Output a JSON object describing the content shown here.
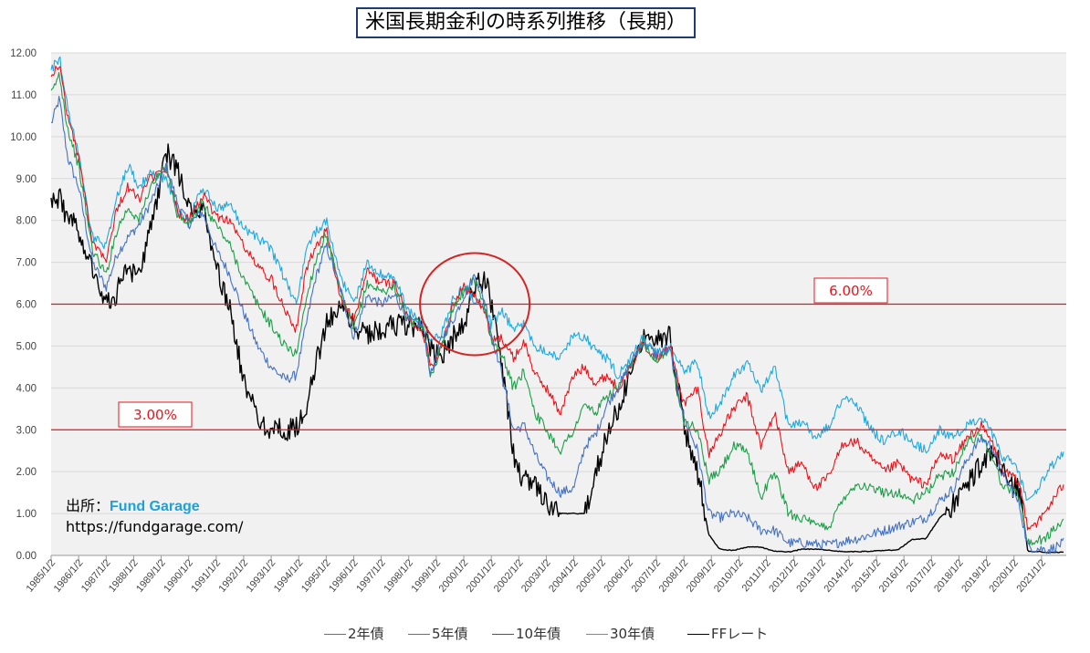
{
  "title": "米国長期金利の時系列推移（長期）",
  "credit": {
    "prefix": "出所：",
    "brand": "Fund Garage",
    "url": "https://fundgarage.com/"
  },
  "chart_data": {
    "type": "line",
    "ylim": [
      0,
      12
    ],
    "y_ticks": [
      "0.00",
      "1.00",
      "2.00",
      "3.00",
      "4.00",
      "5.00",
      "6.00",
      "7.00",
      "8.00",
      "9.00",
      "10.00",
      "11.00",
      "12.00"
    ],
    "x_ticks": [
      "1985/1/2",
      "1986/1/2",
      "1987/1/2",
      "1988/1/2",
      "1989/1/2",
      "1990/1/2",
      "1991/1/2",
      "1992/1/2",
      "1993/1/2",
      "1994/1/2",
      "1995/1/2",
      "1996/1/2",
      "1997/1/2",
      "1998/1/2",
      "1999/1/2",
      "2000/1/2",
      "2001/1/2",
      "2002/1/2",
      "2003/1/2",
      "2004/1/2",
      "2005/1/2",
      "2006/1/2",
      "2007/1/2",
      "2008/1/2",
      "2009/1/2",
      "2010/1/2",
      "2011/1/2",
      "2012/1/2",
      "2013/1/2",
      "2014/1/2",
      "2015/1/2",
      "2016/1/2",
      "2017/1/2",
      "2018/1/2",
      "2019/1/2",
      "2020/1/2",
      "2021/1/2"
    ],
    "x_start": 1985.0,
    "x_end": 2021.9,
    "grid": true,
    "legend_position": "bottom",
    "reference_lines": [
      {
        "y": 6.0,
        "label": "6.00%"
      },
      {
        "y": 3.0,
        "label": "3.00%"
      }
    ],
    "annotations": [
      {
        "shape": "circle",
        "center_x": 2000.4,
        "center_y": 6.0
      }
    ],
    "series": [
      {
        "name": "2年債",
        "color": "#4472c4",
        "x": [
          1985.0,
          1985.3,
          1985.6,
          1986.0,
          1986.5,
          1987.0,
          1987.4,
          1987.8,
          1988.2,
          1988.6,
          1989.2,
          1989.6,
          1990.0,
          1990.5,
          1991.0,
          1991.5,
          1992.0,
          1992.5,
          1993.0,
          1993.5,
          1993.9,
          1994.3,
          1994.6,
          1995.0,
          1995.5,
          1996.0,
          1996.5,
          1997.0,
          1997.5,
          1998.0,
          1998.5,
          1998.8,
          1999.2,
          1999.6,
          2000.0,
          2000.4,
          2000.8,
          2001.0,
          2001.4,
          2001.8,
          2002.2,
          2002.6,
          2003.0,
          2003.5,
          2004.0,
          2004.4,
          2004.8,
          2005.2,
          2005.6,
          2006.0,
          2006.5,
          2007.0,
          2007.5,
          2008.0,
          2008.5,
          2008.9,
          2009.3,
          2009.8,
          2010.3,
          2010.8,
          2011.3,
          2011.8,
          2012.3,
          2012.8,
          2013.3,
          2013.8,
          2014.3,
          2014.8,
          2015.3,
          2015.8,
          2016.3,
          2016.8,
          2017.3,
          2017.8,
          2018.3,
          2018.8,
          2019.2,
          2019.6,
          2019.9,
          2020.2,
          2020.5,
          2020.9,
          2021.3,
          2021.8
        ],
        "y": [
          10.3,
          10.9,
          9.5,
          8.8,
          7.0,
          6.4,
          7.2,
          7.6,
          7.9,
          8.4,
          9.3,
          8.4,
          7.9,
          8.2,
          7.3,
          6.7,
          5.8,
          5.0,
          4.5,
          4.2,
          4.3,
          5.6,
          6.6,
          7.4,
          6.4,
          5.2,
          6.2,
          6.0,
          6.2,
          5.6,
          5.5,
          4.3,
          5.2,
          5.6,
          6.2,
          6.7,
          6.0,
          5.3,
          4.3,
          3.0,
          3.1,
          2.4,
          1.9,
          1.5,
          1.6,
          2.6,
          2.9,
          3.6,
          4.0,
          4.5,
          5.1,
          4.8,
          4.9,
          3.3,
          2.5,
          1.0,
          0.9,
          1.0,
          0.9,
          0.6,
          0.6,
          0.3,
          0.3,
          0.27,
          0.25,
          0.34,
          0.4,
          0.5,
          0.6,
          0.7,
          0.8,
          0.9,
          1.3,
          1.6,
          2.3,
          2.8,
          2.6,
          1.9,
          1.6,
          1.2,
          0.2,
          0.16,
          0.14,
          0.3
        ]
      },
      {
        "name": "5年債",
        "color": "#1e9e4a",
        "x": [
          1985.0,
          1985.3,
          1985.6,
          1986.0,
          1986.5,
          1987.0,
          1987.4,
          1987.8,
          1988.2,
          1988.6,
          1989.2,
          1989.6,
          1990.0,
          1990.5,
          1991.0,
          1991.5,
          1992.0,
          1992.5,
          1993.0,
          1993.5,
          1993.9,
          1994.3,
          1994.6,
          1995.0,
          1995.5,
          1996.0,
          1996.5,
          1997.0,
          1997.5,
          1998.0,
          1998.5,
          1998.8,
          1999.2,
          1999.6,
          2000.0,
          2000.4,
          2000.8,
          2001.0,
          2001.4,
          2001.8,
          2002.2,
          2002.6,
          2003.0,
          2003.5,
          2004.0,
          2004.4,
          2004.8,
          2005.2,
          2005.6,
          2006.0,
          2006.5,
          2007.0,
          2007.5,
          2008.0,
          2008.5,
          2008.9,
          2009.3,
          2009.8,
          2010.3,
          2010.8,
          2011.3,
          2011.8,
          2012.3,
          2012.8,
          2013.3,
          2013.8,
          2014.3,
          2014.8,
          2015.3,
          2015.8,
          2016.3,
          2016.8,
          2017.3,
          2017.8,
          2018.3,
          2018.8,
          2019.2,
          2019.6,
          2019.9,
          2020.2,
          2020.5,
          2020.9,
          2021.3,
          2021.8
        ],
        "y": [
          11.0,
          11.5,
          10.2,
          9.3,
          7.3,
          6.7,
          7.8,
          8.3,
          8.0,
          8.8,
          9.3,
          8.1,
          7.9,
          8.4,
          7.9,
          7.4,
          6.6,
          6.0,
          5.5,
          5.0,
          4.8,
          6.2,
          7.0,
          7.7,
          6.3,
          5.4,
          6.5,
          6.3,
          6.4,
          5.6,
          5.5,
          4.3,
          5.0,
          5.9,
          6.3,
          6.6,
          5.9,
          5.1,
          4.8,
          4.0,
          4.4,
          3.4,
          3.0,
          2.5,
          3.0,
          3.6,
          3.4,
          3.8,
          4.0,
          4.4,
          5.1,
          4.7,
          4.9,
          3.2,
          3.0,
          1.8,
          2.0,
          2.6,
          2.5,
          1.4,
          2.0,
          1.0,
          0.9,
          0.7,
          0.7,
          1.4,
          1.7,
          1.6,
          1.5,
          1.5,
          1.3,
          1.5,
          1.9,
          2.0,
          2.7,
          2.9,
          2.4,
          1.6,
          1.6,
          1.4,
          0.3,
          0.35,
          0.5,
          0.85
        ]
      },
      {
        "name": "10年債",
        "color": "#e8141c",
        "x": [
          1985.0,
          1985.3,
          1985.6,
          1986.0,
          1986.5,
          1987.0,
          1987.4,
          1987.8,
          1988.2,
          1988.6,
          1989.2,
          1989.6,
          1990.0,
          1990.5,
          1991.0,
          1991.5,
          1992.0,
          1992.5,
          1993.0,
          1993.5,
          1993.9,
          1994.3,
          1994.6,
          1995.0,
          1995.5,
          1996.0,
          1996.5,
          1997.0,
          1997.5,
          1998.0,
          1998.5,
          1998.8,
          1999.2,
          1999.6,
          2000.0,
          2000.4,
          2000.8,
          2001.0,
          2001.4,
          2001.8,
          2002.2,
          2002.6,
          2003.0,
          2003.5,
          2004.0,
          2004.4,
          2004.8,
          2005.2,
          2005.6,
          2006.0,
          2006.5,
          2007.0,
          2007.5,
          2008.0,
          2008.5,
          2008.9,
          2009.3,
          2009.8,
          2010.3,
          2010.8,
          2011.3,
          2011.8,
          2012.3,
          2012.8,
          2013.3,
          2013.8,
          2014.3,
          2014.8,
          2015.3,
          2015.8,
          2016.3,
          2016.8,
          2017.3,
          2017.8,
          2018.3,
          2018.8,
          2019.2,
          2019.6,
          2019.9,
          2020.2,
          2020.5,
          2020.9,
          2021.3,
          2021.8
        ],
        "y": [
          11.5,
          11.7,
          10.5,
          9.5,
          7.5,
          7.1,
          8.3,
          8.8,
          8.5,
          9.0,
          9.2,
          8.2,
          8.0,
          8.6,
          8.1,
          8.0,
          7.4,
          6.9,
          6.6,
          5.9,
          5.4,
          6.9,
          7.3,
          7.8,
          6.2,
          5.6,
          6.8,
          6.5,
          6.5,
          5.6,
          5.4,
          4.5,
          5.0,
          6.0,
          6.4,
          6.2,
          5.8,
          5.1,
          5.2,
          4.7,
          5.1,
          4.3,
          4.0,
          3.4,
          4.3,
          4.5,
          4.1,
          4.3,
          4.0,
          4.4,
          5.1,
          4.7,
          5.0,
          3.6,
          4.0,
          2.4,
          2.9,
          3.5,
          3.8,
          2.6,
          3.4,
          2.0,
          2.2,
          1.6,
          1.9,
          2.7,
          2.7,
          2.3,
          2.0,
          2.2,
          1.8,
          1.7,
          2.4,
          2.3,
          2.8,
          3.1,
          2.7,
          2.0,
          1.9,
          1.7,
          0.7,
          0.8,
          1.2,
          1.7
        ]
      },
      {
        "name": "30年債",
        "color": "#1fa9df",
        "x": [
          1985.0,
          1985.3,
          1985.6,
          1986.0,
          1986.5,
          1987.0,
          1987.4,
          1987.8,
          1988.2,
          1988.6,
          1989.2,
          1989.6,
          1990.0,
          1990.5,
          1991.0,
          1991.5,
          1992.0,
          1992.5,
          1993.0,
          1993.5,
          1993.9,
          1994.3,
          1994.6,
          1995.0,
          1995.5,
          1996.0,
          1996.5,
          1997.0,
          1997.5,
          1998.0,
          1998.5,
          1998.8,
          1999.2,
          1999.6,
          2000.0,
          2000.4,
          2000.8,
          2001.0,
          2001.4,
          2001.8,
          2002.2,
          2002.6,
          2003.0,
          2003.5,
          2004.0,
          2004.4,
          2004.8,
          2005.2,
          2005.6,
          2006.0,
          2006.5,
          2007.0,
          2007.5,
          2008.0,
          2008.5,
          2008.9,
          2009.3,
          2009.8,
          2010.3,
          2010.8,
          2011.3,
          2011.8,
          2012.3,
          2012.8,
          2013.3,
          2013.8,
          2014.3,
          2014.8,
          2015.3,
          2015.8,
          2016.3,
          2016.8,
          2017.3,
          2017.8,
          2018.3,
          2018.8,
          2019.2,
          2019.6,
          2019.9,
          2020.2,
          2020.5,
          2020.9,
          2021.3,
          2021.8
        ],
        "y": [
          11.6,
          11.9,
          10.7,
          9.6,
          7.6,
          7.4,
          8.6,
          9.3,
          8.8,
          9.1,
          9.0,
          8.2,
          8.0,
          8.8,
          8.3,
          8.4,
          7.8,
          7.6,
          7.3,
          6.6,
          6.0,
          7.3,
          7.7,
          8.0,
          6.7,
          6.0,
          7.0,
          6.7,
          6.6,
          5.8,
          5.6,
          5.1,
          5.3,
          6.1,
          6.4,
          6.1,
          5.9,
          5.5,
          5.8,
          5.4,
          5.5,
          5.0,
          4.9,
          4.7,
          5.3,
          5.2,
          4.9,
          4.7,
          4.3,
          4.6,
          5.2,
          4.8,
          5.0,
          4.4,
          4.6,
          3.3,
          3.6,
          4.3,
          4.6,
          3.9,
          4.5,
          3.1,
          3.2,
          2.8,
          3.1,
          3.8,
          3.6,
          3.0,
          2.7,
          3.0,
          2.7,
          2.5,
          3.0,
          2.8,
          3.1,
          3.3,
          2.9,
          2.3,
          2.3,
          1.9,
          1.3,
          1.6,
          2.1,
          2.4
        ]
      },
      {
        "name": "FFレート",
        "color": "#000000",
        "x": [
          1985.0,
          1985.3,
          1985.6,
          1986.0,
          1986.5,
          1987.0,
          1987.4,
          1987.8,
          1988.2,
          1988.6,
          1989.2,
          1989.6,
          1990.0,
          1990.5,
          1991.0,
          1991.5,
          1992.0,
          1992.5,
          1993.0,
          1993.5,
          1993.9,
          1994.3,
          1994.6,
          1995.0,
          1995.5,
          1996.0,
          1996.5,
          1997.0,
          1997.5,
          1998.0,
          1998.5,
          1998.8,
          1999.2,
          1999.6,
          2000.0,
          2000.4,
          2000.8,
          2001.0,
          2001.4,
          2001.8,
          2002.2,
          2002.6,
          2003.0,
          2003.5,
          2004.0,
          2004.4,
          2004.8,
          2005.2,
          2005.6,
          2006.0,
          2006.5,
          2007.0,
          2007.5,
          2008.0,
          2008.5,
          2008.9,
          2009.3,
          2009.8,
          2010.3,
          2010.8,
          2011.3,
          2011.8,
          2012.3,
          2012.8,
          2013.3,
          2013.8,
          2014.3,
          2014.8,
          2015.3,
          2015.8,
          2016.3,
          2016.8,
          2017.3,
          2017.8,
          2018.3,
          2018.8,
          2019.2,
          2019.6,
          2019.9,
          2020.2,
          2020.5,
          2020.9,
          2021.3,
          2021.8
        ],
        "y": [
          8.4,
          8.6,
          8.0,
          7.8,
          6.9,
          6.0,
          6.3,
          6.8,
          6.6,
          7.8,
          9.6,
          9.2,
          8.3,
          8.2,
          6.9,
          5.9,
          4.1,
          3.3,
          3.0,
          3.0,
          3.0,
          3.6,
          4.5,
          5.5,
          6.0,
          5.5,
          5.3,
          5.4,
          5.5,
          5.5,
          5.5,
          4.9,
          4.8,
          5.2,
          5.5,
          6.5,
          6.5,
          6.0,
          4.5,
          2.4,
          1.75,
          1.75,
          1.25,
          1.0,
          1.0,
          1.0,
          2.0,
          2.8,
          3.5,
          4.3,
          5.25,
          5.25,
          5.25,
          3.1,
          2.0,
          0.5,
          0.15,
          0.12,
          0.2,
          0.2,
          0.1,
          0.08,
          0.15,
          0.15,
          0.12,
          0.09,
          0.09,
          0.1,
          0.12,
          0.14,
          0.38,
          0.4,
          0.9,
          1.2,
          1.7,
          2.2,
          2.4,
          2.1,
          1.6,
          1.6,
          0.1,
          0.09,
          0.07,
          0.08
        ]
      }
    ]
  }
}
